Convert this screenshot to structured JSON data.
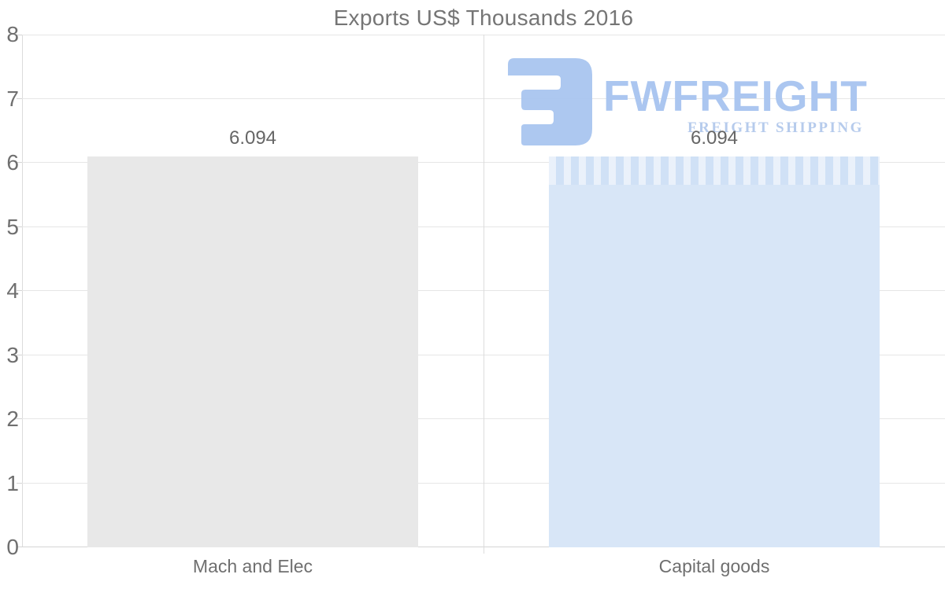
{
  "chart_data": {
    "type": "bar",
    "title": "Exports US$ Thousands 2016",
    "categories": [
      "Mach and Elec",
      "Capital goods"
    ],
    "values": [
      6.094,
      6.094
    ],
    "value_labels": [
      "6.094",
      "6.094"
    ],
    "bar_colors": [
      "#e8e8e8",
      "#d8e6f7"
    ],
    "bar_textures": [
      false,
      true
    ],
    "xlabel": "",
    "ylabel": "",
    "ylim": [
      0,
      8
    ],
    "y_ticks": [
      0,
      1,
      2,
      3,
      4,
      5,
      6,
      7,
      8
    ],
    "grid": true,
    "legend": "none"
  },
  "watermark": {
    "brand": "FWFREIGHT",
    "tagline": "FREIGHT SHIPPING",
    "icon": "reversed-E freight logo mark",
    "brand_color": "#abc6f0"
  },
  "colors": {
    "background": "#ffffff",
    "gridline": "#e6e6e6",
    "axis": "#d4d4d4",
    "title_text": "#757575",
    "tick_text": "#6f6f6f",
    "category_text": "#6f6f6f",
    "value_text": "#666666",
    "bar_gray": "#e8e8e8",
    "bar_blue": "#d8e6f7",
    "brand_blue": "#abc6f0",
    "tagline_blue": "#b6cbec"
  }
}
